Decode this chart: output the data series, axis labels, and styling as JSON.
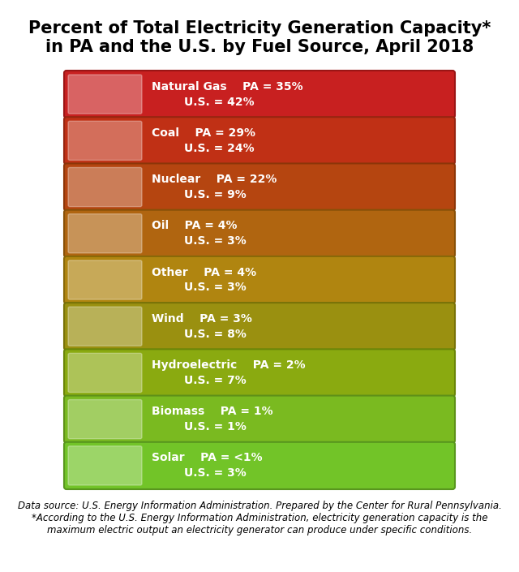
{
  "title": "Percent of Total Electricity Generation Capacity*\nin PA and the U.S. by Fuel Source, April 2018",
  "title_fontsize": 15,
  "footer": "Data source: U.S. Energy Information Administration. Prepared by the Center for Rural Pennsylvania.\n*According to the U.S. Energy Information Administration, electricity generation capacity is the\nmaximum electric output an electricity generator can produce under specific conditions.",
  "footer_fontsize": 8.5,
  "background_color": "#ffffff",
  "rows": [
    {
      "label": "Natural Gas",
      "pa": "PA = 35%",
      "us": "U.S. = 42%",
      "color": "#c82020",
      "border_color": "#9a1515",
      "img_bg": "#c03030"
    },
    {
      "label": "Coal",
      "pa": "PA = 29%",
      "us": "U.S. = 24%",
      "color": "#c03015",
      "border_color": "#952510",
      "img_bg": "#ffffff"
    },
    {
      "label": "Nuclear",
      "pa": "PA = 22%",
      "us": "U.S. = 9%",
      "color": "#b54510",
      "border_color": "#8c3508",
      "img_bg": "#ffffff"
    },
    {
      "label": "Oil",
      "pa": "PA = 4%",
      "us": "U.S. = 3%",
      "color": "#b06510",
      "border_color": "#885008",
      "img_bg": "#000000"
    },
    {
      "label": "Other",
      "pa": "PA = 4%",
      "us": "U.S. = 3%",
      "color": "#b08510",
      "border_color": "#886808",
      "img_bg": "#ffffff"
    },
    {
      "label": "Wind",
      "pa": "PA = 3%",
      "us": "U.S. = 8%",
      "color": "#9a9010",
      "border_color": "#787208",
      "img_bg": "#ffffff"
    },
    {
      "label": "Hydroelectric",
      "pa": "PA = 2%",
      "us": "U.S. = 7%",
      "color": "#8aaa10",
      "border_color": "#6a8508",
      "img_bg": "#4a9090"
    },
    {
      "label": "Biomass",
      "pa": "PA = 1%",
      "us": "U.S. = 1%",
      "color": "#7aba20",
      "border_color": "#5e9018",
      "img_bg": "#ffffff"
    },
    {
      "label": "Solar",
      "pa": "PA = <1%",
      "us": "U.S. = 3%",
      "color": "#72c428",
      "border_color": "#58961e",
      "img_bg": "#ffffff"
    }
  ]
}
